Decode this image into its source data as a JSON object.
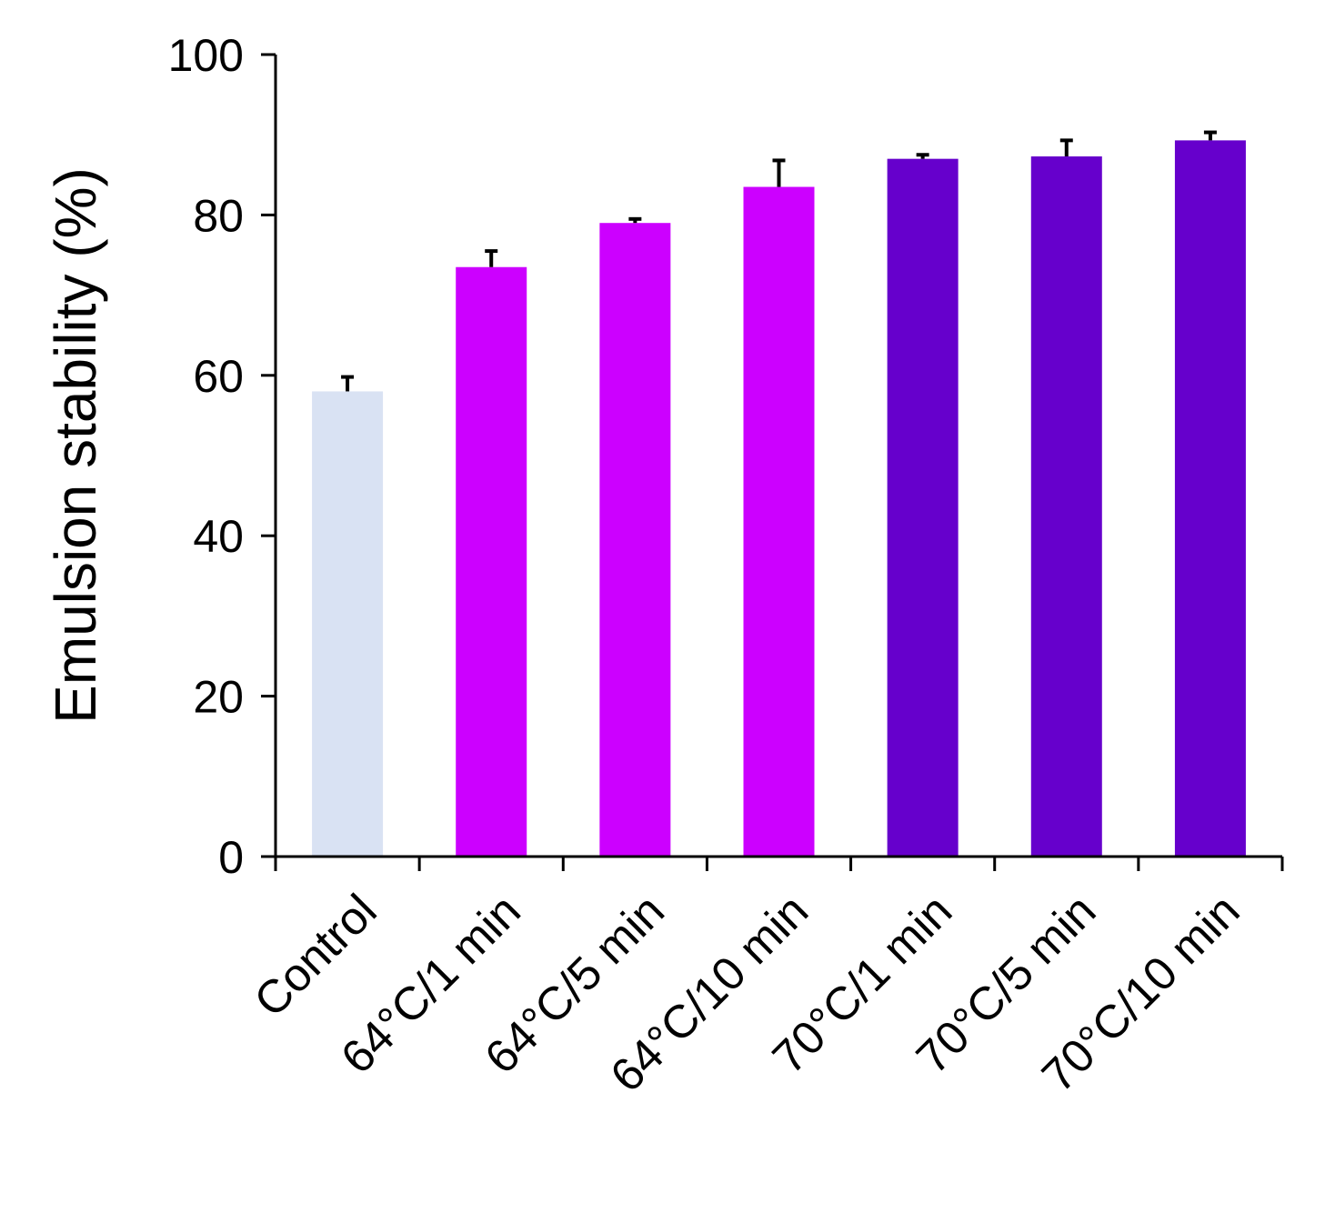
{
  "chart_data": {
    "type": "bar",
    "title": "",
    "xlabel": "",
    "ylabel": "Emulsion stability (%)",
    "ylim": [
      0,
      100
    ],
    "yticks": [
      0,
      20,
      40,
      60,
      80,
      100
    ],
    "grid": false,
    "legend": "none",
    "categories": [
      "Control",
      "64°C/1 min",
      "64°C/5 min",
      "64°C/10 min",
      "70°C/1 min",
      "70°C/5 min",
      "70°C/10 min"
    ],
    "values": [
      58,
      73.5,
      79,
      83.5,
      87,
      87.3,
      89.3
    ],
    "errors": [
      1.8,
      2,
      0.5,
      3.3,
      0.5,
      2,
      1
    ],
    "colors": [
      "#d9e2f3",
      "#cc00ff",
      "#cc00ff",
      "#cc00ff",
      "#6600cc",
      "#6600cc",
      "#6600cc"
    ]
  }
}
